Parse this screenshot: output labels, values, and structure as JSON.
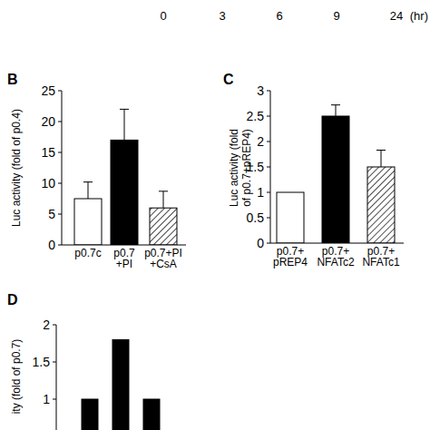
{
  "chart_data": [
    {
      "type": "axis",
      "categories": [
        "0",
        "3",
        "6",
        "9",
        "24"
      ],
      "xlabel": "(hr)"
    },
    {
      "type": "bar",
      "title": "B",
      "ylabel": "Luc activity (fold of p0.4)",
      "categories": [
        "p0.7c",
        "p0.7\n+PI",
        "p0.7+PI\n+CsA"
      ],
      "values": [
        7.5,
        17,
        6
      ],
      "errors": [
        2.7,
        5,
        2.7
      ],
      "colors": [
        "#ffffff",
        "#000000",
        "hatch"
      ],
      "ylim": [
        0,
        25
      ],
      "yticks": [
        0,
        5,
        10,
        15,
        20,
        25
      ]
    },
    {
      "type": "bar",
      "title": "C",
      "ylabel": "Luc activity (fold\nof p0.7+pREP4)",
      "categories": [
        "p0.7+\npREP4",
        "p0.7+\nNFATc2",
        "p0.7+\nNFATc1"
      ],
      "values": [
        1,
        2.5,
        1.5
      ],
      "errors": [
        0,
        0.22,
        0.33
      ],
      "colors": [
        "#ffffff",
        "#000000",
        "hatch"
      ],
      "ylim": [
        0,
        3
      ],
      "yticks": [
        0,
        0.5,
        1,
        1.5,
        2,
        2.5,
        3
      ]
    },
    {
      "type": "bar",
      "title": "D",
      "ylabel": "ity (fold of p0.7)",
      "categories": [
        null,
        null,
        null
      ],
      "values": [
        1,
        1.8,
        1
      ],
      "color": "#000000",
      "ylim": [
        0,
        2
      ],
      "yticks": [
        1,
        1.5,
        2
      ]
    }
  ]
}
